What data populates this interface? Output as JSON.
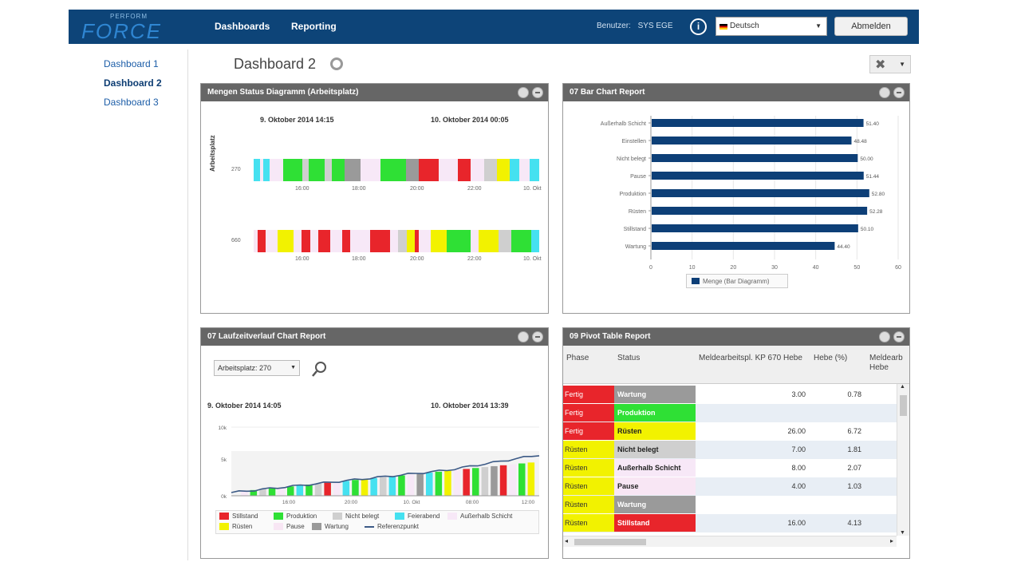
{
  "brand": {
    "small": "PERFORM",
    "name": "FORCE"
  },
  "nav": [
    "Dashboards",
    "Reporting"
  ],
  "user": {
    "label": "Benutzer:",
    "name": "SYS EGE"
  },
  "language": {
    "selected": "Deutsch"
  },
  "logout_label": "Abmelden",
  "sidebar": [
    "Dashboard 1",
    "Dashboard 2",
    "Dashboard 3"
  ],
  "page_title": "Dashboard 2",
  "colors": {
    "header": "#0d4478",
    "Stillstand": "#e8252b",
    "Produktion": "#2fe035",
    "Nicht belegt": "#cfcfcf",
    "Rüsten": "#f2f200",
    "Pause": "#f8e6f4",
    "Wartung": "#9a9a9a",
    "Feierabend": "#45e1f0",
    "Außerhalb Schicht": "#f7e8f7",
    "bar": "#0d3f77"
  },
  "panel_status": {
    "title": "Mengen Status Diagramm (Arbeitsplatz)",
    "y_label": "Arbeitsplatz",
    "start": "9. Oktober 2014 14:15",
    "end": "10. Oktober 2014 00:05",
    "rows": [
      {
        "label": "270",
        "ticks": [
          "16:00",
          "18:00",
          "20:00",
          "22:00",
          "10. Okt"
        ],
        "segments": [
          {
            "s": "Feierabend",
            "w": 2
          },
          {
            "s": "Außerhalb Schicht",
            "w": 1
          },
          {
            "s": "Feierabend",
            "w": 2
          },
          {
            "s": "Außerhalb Schicht",
            "w": 4
          },
          {
            "s": "Produktion",
            "w": 6
          },
          {
            "s": "Nicht belegt",
            "w": 2
          },
          {
            "s": "Produktion",
            "w": 5
          },
          {
            "s": "Nicht belegt",
            "w": 2
          },
          {
            "s": "Produktion",
            "w": 4
          },
          {
            "s": "Wartung",
            "w": 5
          },
          {
            "s": "Außerhalb Schicht",
            "w": 6
          },
          {
            "s": "Produktion",
            "w": 8
          },
          {
            "s": "Wartung",
            "w": 4
          },
          {
            "s": "Stillstand",
            "w": 6
          },
          {
            "s": "Außerhalb Schicht",
            "w": 6
          },
          {
            "s": "Stillstand",
            "w": 4
          },
          {
            "s": "Außerhalb Schicht",
            "w": 4
          },
          {
            "s": "Nicht belegt",
            "w": 4
          },
          {
            "s": "Rüsten",
            "w": 4
          },
          {
            "s": "Feierabend",
            "w": 3
          },
          {
            "s": "Außerhalb Schicht",
            "w": 3
          },
          {
            "s": "Feierabend",
            "w": 3
          }
        ]
      },
      {
        "label": "660",
        "ticks": [
          "16:00",
          "18:00",
          "20:00",
          "22:00",
          "10. Okt"
        ],
        "segments": [
          {
            "s": "Pause",
            "w": 1
          },
          {
            "s": "Stillstand",
            "w": 2
          },
          {
            "s": "Außerhalb Schicht",
            "w": 3
          },
          {
            "s": "Rüsten",
            "w": 4
          },
          {
            "s": "Außerhalb Schicht",
            "w": 2
          },
          {
            "s": "Stillstand",
            "w": 2
          },
          {
            "s": "Außerhalb Schicht",
            "w": 2
          },
          {
            "s": "Stillstand",
            "w": 3
          },
          {
            "s": "Außerhalb Schicht",
            "w": 3
          },
          {
            "s": "Stillstand",
            "w": 2
          },
          {
            "s": "Außerhalb Schicht",
            "w": 5
          },
          {
            "s": "Stillstand",
            "w": 5
          },
          {
            "s": "Außerhalb Schicht",
            "w": 2
          },
          {
            "s": "Nicht belegt",
            "w": 2
          },
          {
            "s": "Rüsten",
            "w": 2
          },
          {
            "s": "Stillstand",
            "w": 1
          },
          {
            "s": "Außerhalb Schicht",
            "w": 3
          },
          {
            "s": "Rüsten",
            "w": 4
          },
          {
            "s": "Produktion",
            "w": 6
          },
          {
            "s": "Außerhalb Schicht",
            "w": 2
          },
          {
            "s": "Rüsten",
            "w": 5
          },
          {
            "s": "Nicht belegt",
            "w": 3
          },
          {
            "s": "Produktion",
            "w": 5
          },
          {
            "s": "Feierabend",
            "w": 2
          }
        ]
      }
    ]
  },
  "panel_bar": {
    "title": "07 Bar Chart Report",
    "legend": "Menge (Bar Diagramm)"
  },
  "chart_data": {
    "type": "bar",
    "orientation": "horizontal",
    "categories": [
      "Außerhalb Schicht",
      "Einstellen",
      "Nicht belegt",
      "Pause",
      "Produktion",
      "Rüsten",
      "Stillstand",
      "Wartung"
    ],
    "values": [
      51.4,
      48.48,
      50.0,
      51.44,
      52.8,
      52.28,
      50.1,
      44.4
    ],
    "data_labels": [
      "51.40",
      "48.48",
      "50.00",
      "51.44",
      "52.80",
      "52.28",
      "50.10",
      "44.40"
    ],
    "xlim": [
      0,
      60
    ],
    "x_ticks": [
      "0",
      "10",
      "20",
      "30",
      "40",
      "50",
      "60"
    ],
    "legend_position": "bottom",
    "series": [
      {
        "name": "Menge (Bar Diagramm)",
        "values": [
          51.4,
          48.48,
          50.0,
          51.44,
          52.8,
          52.28,
          50.1,
          44.4
        ]
      }
    ]
  },
  "panel_line": {
    "title": "07 Laufzeitverlauf Chart Report",
    "select_value": "Arbeitsplatz: 270",
    "start": "9. Oktober 2014 14:05",
    "end": "10. Oktober 2014 13:39",
    "y_ticks": [
      "10k",
      "5k",
      "0k"
    ],
    "x_ticks": [
      "16:00",
      "20:00",
      "10. Okt",
      "08:00",
      "12:00"
    ],
    "legend": [
      "Stillstand",
      "Produktion",
      "Nicht belegt",
      "Feierabend",
      "Außerhalb Schicht",
      "Rüsten",
      "Pause",
      "Wartung",
      "Referenzpunkt"
    ]
  },
  "panel_pivot": {
    "title": "09 Pivot Table Report",
    "headers": [
      "Phase",
      "Status",
      "Meldearbeitspl. KP 670 Hebe",
      "Hebe (%)",
      "Meldearb Hebe"
    ],
    "rows": [
      {
        "phase": "Fertig",
        "status": "Wartung",
        "v1": "3.00",
        "v2": "0.78"
      },
      {
        "phase": "Fertig",
        "status": "Produktion",
        "v1": "",
        "v2": ""
      },
      {
        "phase": "Fertig",
        "status": "Rüsten",
        "v1": "26.00",
        "v2": "6.72"
      },
      {
        "phase": "Rüsten",
        "status": "Nicht belegt",
        "v1": "7.00",
        "v2": "1.81"
      },
      {
        "phase": "Rüsten",
        "status": "Außerhalb Schicht",
        "v1": "8.00",
        "v2": "2.07"
      },
      {
        "phase": "Rüsten",
        "status": "Pause",
        "v1": "4.00",
        "v2": "1.03"
      },
      {
        "phase": "Rüsten",
        "status": "Wartung",
        "v1": "",
        "v2": ""
      },
      {
        "phase": "Rüsten",
        "status": "Stillstand",
        "v1": "16.00",
        "v2": "4.13"
      }
    ]
  }
}
